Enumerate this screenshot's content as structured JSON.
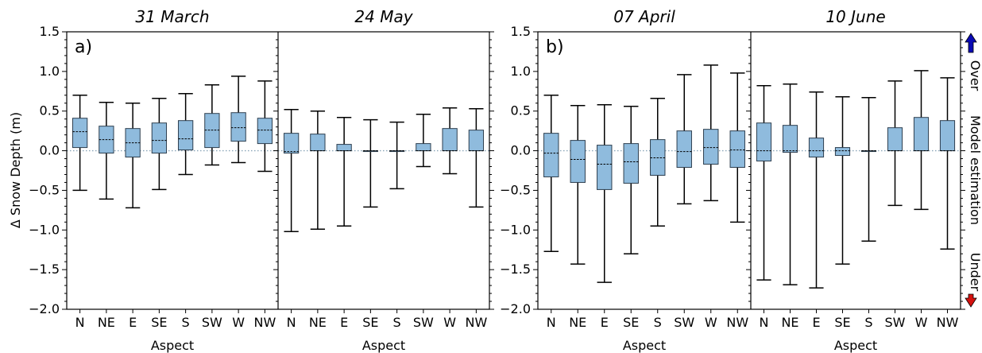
{
  "chart_data": [
    {
      "type": "box",
      "panel_letter": "a)",
      "ylabel": "Δ Snow Depth (m)",
      "ylim": [
        -2.0,
        1.5
      ],
      "yticks": [
        "1.5",
        "1.0",
        "0.5",
        "0.0",
        "−0.5",
        "−1.0",
        "−1.5",
        "−2.0"
      ],
      "reference_line": 0.0,
      "subplots": [
        {
          "title": "31 March",
          "xlabel": "Aspect",
          "categories": [
            "N",
            "NE",
            "E",
            "SE",
            "S",
            "SW",
            "W",
            "NW"
          ],
          "boxes": [
            {
              "whisker_low": -0.5,
              "q1": 0.04,
              "median": 0.24,
              "q3": 0.41,
              "whisker_high": 0.7
            },
            {
              "whisker_low": -0.61,
              "q1": -0.03,
              "median": 0.14,
              "q3": 0.31,
              "whisker_high": 0.61
            },
            {
              "whisker_low": -0.72,
              "q1": -0.08,
              "median": 0.1,
              "q3": 0.28,
              "whisker_high": 0.6
            },
            {
              "whisker_low": -0.49,
              "q1": -0.03,
              "median": 0.13,
              "q3": 0.35,
              "whisker_high": 0.66
            },
            {
              "whisker_low": -0.3,
              "q1": 0.01,
              "median": 0.15,
              "q3": 0.38,
              "whisker_high": 0.72
            },
            {
              "whisker_low": -0.18,
              "q1": 0.04,
              "median": 0.26,
              "q3": 0.47,
              "whisker_high": 0.83
            },
            {
              "whisker_low": -0.15,
              "q1": 0.12,
              "median": 0.29,
              "q3": 0.48,
              "whisker_high": 0.94
            },
            {
              "whisker_low": -0.26,
              "q1": 0.09,
              "median": 0.26,
              "q3": 0.41,
              "whisker_high": 0.88
            }
          ]
        },
        {
          "title": "24 May",
          "xlabel": "Aspect",
          "categories": [
            "N",
            "NE",
            "E",
            "SE",
            "S",
            "SW",
            "W",
            "NW"
          ],
          "boxes": [
            {
              "whisker_low": -1.02,
              "q1": -0.03,
              "median": -0.01,
              "q3": 0.22,
              "whisker_high": 0.52
            },
            {
              "whisker_low": -0.99,
              "q1": 0.0,
              "median": 0.0,
              "q3": 0.21,
              "whisker_high": 0.5
            },
            {
              "whisker_low": -0.95,
              "q1": 0.0,
              "median": 0.0,
              "q3": 0.08,
              "whisker_high": 0.42
            },
            {
              "whisker_low": -0.71,
              "q1": 0.0,
              "median": 0.0,
              "q3": 0.0,
              "whisker_high": 0.39
            },
            {
              "whisker_low": -0.48,
              "q1": 0.0,
              "median": 0.0,
              "q3": 0.0,
              "whisker_high": 0.36
            },
            {
              "whisker_low": -0.2,
              "q1": 0.0,
              "median": 0.0,
              "q3": 0.09,
              "whisker_high": 0.46
            },
            {
              "whisker_low": -0.29,
              "q1": 0.0,
              "median": 0.0,
              "q3": 0.28,
              "whisker_high": 0.54
            },
            {
              "whisker_low": -0.71,
              "q1": 0.0,
              "median": 0.0,
              "q3": 0.26,
              "whisker_high": 0.53
            }
          ]
        }
      ]
    },
    {
      "type": "box",
      "panel_letter": "b)",
      "ylim": [
        -2.0,
        1.5
      ],
      "yticks": [
        "1.5",
        "1.0",
        "0.5",
        "0.0",
        "−0.5",
        "−1.0",
        "−1.5",
        "−2.0"
      ],
      "reference_line": 0.0,
      "right_label_over": "Over",
      "right_label_middle": "Model estimation",
      "right_label_under": "Under",
      "subplots": [
        {
          "title": "07 April",
          "xlabel": "Aspect",
          "categories": [
            "N",
            "NE",
            "E",
            "SE",
            "S",
            "SW",
            "W",
            "NW"
          ],
          "boxes": [
            {
              "whisker_low": -1.27,
              "q1": -0.33,
              "median": -0.03,
              "q3": 0.22,
              "whisker_high": 0.7
            },
            {
              "whisker_low": -1.43,
              "q1": -0.4,
              "median": -0.11,
              "q3": 0.13,
              "whisker_high": 0.57
            },
            {
              "whisker_low": -1.66,
              "q1": -0.49,
              "median": -0.17,
              "q3": 0.07,
              "whisker_high": 0.58
            },
            {
              "whisker_low": -1.3,
              "q1": -0.41,
              "median": -0.14,
              "q3": 0.09,
              "whisker_high": 0.56
            },
            {
              "whisker_low": -0.95,
              "q1": -0.31,
              "median": -0.09,
              "q3": 0.14,
              "whisker_high": 0.66
            },
            {
              "whisker_low": -0.67,
              "q1": -0.21,
              "median": -0.01,
              "q3": 0.25,
              "whisker_high": 0.96
            },
            {
              "whisker_low": -0.63,
              "q1": -0.17,
              "median": 0.04,
              "q3": 0.27,
              "whisker_high": 1.08
            },
            {
              "whisker_low": -0.9,
              "q1": -0.21,
              "median": 0.01,
              "q3": 0.25,
              "whisker_high": 0.98
            }
          ]
        },
        {
          "title": "10 June",
          "xlabel": "Aspect",
          "categories": [
            "N",
            "NE",
            "E",
            "SE",
            "S",
            "SW",
            "W",
            "NW"
          ],
          "boxes": [
            {
              "whisker_low": -1.63,
              "q1": -0.13,
              "median": 0.0,
              "q3": 0.35,
              "whisker_high": 0.82
            },
            {
              "whisker_low": -1.69,
              "q1": -0.02,
              "median": 0.0,
              "q3": 0.32,
              "whisker_high": 0.84
            },
            {
              "whisker_low": -1.73,
              "q1": -0.08,
              "median": 0.0,
              "q3": 0.16,
              "whisker_high": 0.74
            },
            {
              "whisker_low": -1.43,
              "q1": -0.06,
              "median": 0.0,
              "q3": 0.04,
              "whisker_high": 0.68
            },
            {
              "whisker_low": -1.14,
              "q1": 0.0,
              "median": 0.0,
              "q3": 0.0,
              "whisker_high": 0.67
            },
            {
              "whisker_low": -0.69,
              "q1": 0.0,
              "median": 0.0,
              "q3": 0.29,
              "whisker_high": 0.88
            },
            {
              "whisker_low": -0.74,
              "q1": 0.0,
              "median": 0.0,
              "q3": 0.42,
              "whisker_high": 1.01
            },
            {
              "whisker_low": -1.24,
              "q1": 0.0,
              "median": 0.0,
              "q3": 0.38,
              "whisker_high": 0.92
            }
          ]
        }
      ]
    }
  ],
  "colors": {
    "box_fill": "#8fbbdd",
    "box_edge": "#2e3f4f",
    "whisker": "#000000",
    "median": "#000000",
    "reference_line": "#8aa5b8",
    "arrow_up": "#0a0ab4",
    "arrow_down": "#d4120f"
  },
  "icons": {
    "arrow_up": "arrow-up-icon",
    "arrow_down": "arrow-down-icon"
  }
}
